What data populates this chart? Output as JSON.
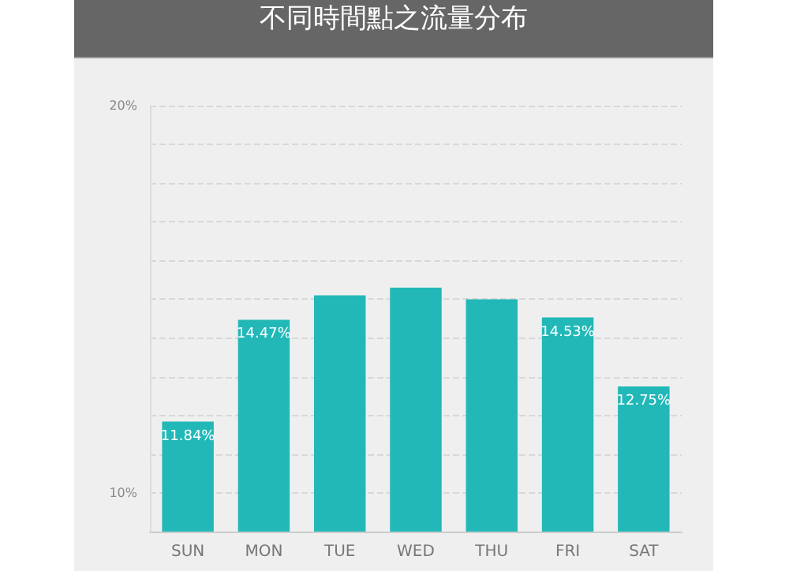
{
  "chart_data": {
    "type": "bar",
    "title": "不同時間點之流量分布",
    "categories": [
      "SUN",
      "MON",
      "TUE",
      "WED",
      "THU",
      "FRI",
      "SAT"
    ],
    "values": [
      11.84,
      14.47,
      15.1,
      15.3,
      15.0,
      14.53,
      12.75
    ],
    "value_labels": [
      "11.84%",
      "14.47%",
      null,
      null,
      null,
      "14.53%",
      "12.75%"
    ],
    "color": "#22b8b8",
    "ylim": [
      9,
      20
    ],
    "yticks": [
      {
        "value": 10,
        "label": "10%"
      },
      {
        "value": 11,
        "label": null
      },
      {
        "value": 12,
        "label": null
      },
      {
        "value": 13,
        "label": null
      },
      {
        "value": 14,
        "label": null
      },
      {
        "value": 15,
        "label": null
      },
      {
        "value": 16,
        "label": null
      },
      {
        "value": 17,
        "label": null
      },
      {
        "value": 18,
        "label": null
      },
      {
        "value": 19,
        "label": null
      },
      {
        "value": 20,
        "label": "20%"
      }
    ],
    "grid": "y"
  }
}
